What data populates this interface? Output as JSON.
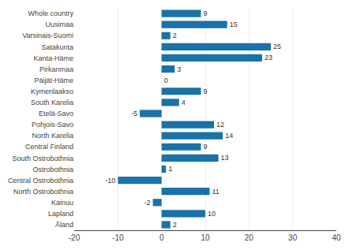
{
  "chart_data": {
    "type": "bar",
    "orientation": "horizontal",
    "categories": [
      "Whole country",
      "Uusimaa",
      "Varsinais-Suomi",
      "Satakunta",
      "Kanta-Häme",
      "Pirkanmaa",
      "Päijät-Häme",
      "Kymenlaakso",
      "South Karelia",
      "Etelä-Savo",
      "Pohjois-Savo",
      "North Karelia",
      "Central Finland",
      "South Ostrobothnia",
      "Ostrobothnia",
      "Central Ostrobothnia",
      "North Ostrobothnia",
      "Kainuu",
      "Lapland",
      "Åland"
    ],
    "values": [
      9,
      15,
      2,
      25,
      23,
      3,
      0,
      9,
      4,
      -5,
      12,
      14,
      9,
      13,
      1,
      -10,
      11,
      -2,
      10,
      2
    ],
    "color": "#1972a8",
    "xlim": [
      -20,
      40
    ],
    "xticks": [
      -20,
      -10,
      0,
      10,
      20,
      30,
      40
    ],
    "grid": true,
    "data_labels": true
  }
}
